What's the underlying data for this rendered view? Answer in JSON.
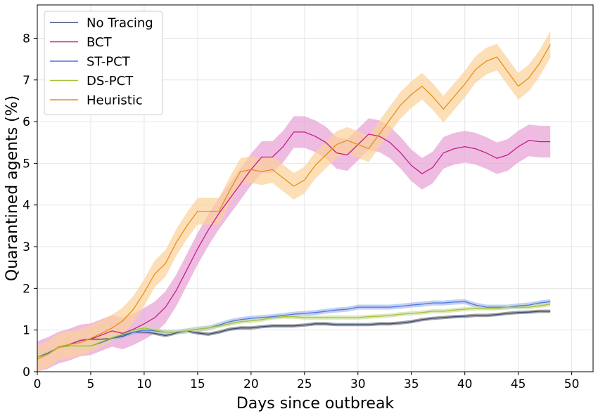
{
  "chart_data": {
    "type": "line",
    "xlabel": "Days since outbreak",
    "ylabel": "Quarantined agents (%)",
    "xlim": [
      0,
      52
    ],
    "ylim": [
      0,
      8.8
    ],
    "xticks": [
      0,
      5,
      10,
      15,
      20,
      25,
      30,
      35,
      40,
      45,
      50
    ],
    "yticks": [
      0,
      1,
      2,
      3,
      4,
      5,
      6,
      7,
      8
    ],
    "grid": true,
    "legend_position": "top-left",
    "series": [
      {
        "name": "No Tracing",
        "color": "#3b4f7a",
        "band_color": "#7a7a7a",
        "x": [
          0,
          1,
          2,
          3,
          4,
          5,
          6,
          7,
          8,
          9,
          10,
          11,
          12,
          13,
          14,
          15,
          16,
          17,
          18,
          19,
          20,
          21,
          22,
          23,
          24,
          25,
          26,
          27,
          28,
          29,
          30,
          31,
          32,
          33,
          34,
          35,
          36,
          37,
          38,
          39,
          40,
          41,
          42,
          43,
          44,
          45,
          46,
          47,
          48
        ],
        "y": [
          0.35,
          0.45,
          0.58,
          0.65,
          0.75,
          0.78,
          0.78,
          0.8,
          0.85,
          0.95,
          0.95,
          0.92,
          0.87,
          0.93,
          0.98,
          0.93,
          0.9,
          0.95,
          1.02,
          1.05,
          1.05,
          1.08,
          1.1,
          1.1,
          1.1,
          1.12,
          1.15,
          1.15,
          1.13,
          1.13,
          1.13,
          1.13,
          1.15,
          1.15,
          1.17,
          1.2,
          1.25,
          1.28,
          1.3,
          1.32,
          1.33,
          1.35,
          1.35,
          1.37,
          1.4,
          1.42,
          1.43,
          1.45,
          1.45
        ],
        "band": 0.04
      },
      {
        "name": "BCT",
        "color": "#c71c8c",
        "band_color": "#e8a0d4",
        "x": [
          0,
          1,
          2,
          3,
          4,
          5,
          6,
          7,
          8,
          9,
          10,
          11,
          12,
          13,
          14,
          15,
          16,
          17,
          18,
          19,
          20,
          21,
          22,
          23,
          24,
          25,
          26,
          27,
          28,
          29,
          30,
          31,
          32,
          33,
          34,
          35,
          36,
          37,
          38,
          39,
          40,
          41,
          42,
          43,
          44,
          45,
          46,
          47,
          48
        ],
        "y": [
          0.35,
          0.45,
          0.58,
          0.65,
          0.75,
          0.78,
          0.88,
          0.98,
          0.92,
          1.02,
          1.15,
          1.3,
          1.55,
          1.95,
          2.45,
          2.95,
          3.4,
          3.8,
          4.15,
          4.5,
          4.85,
          5.15,
          5.15,
          5.4,
          5.75,
          5.75,
          5.65,
          5.5,
          5.25,
          5.2,
          5.45,
          5.7,
          5.65,
          5.5,
          5.25,
          4.95,
          4.75,
          4.9,
          5.25,
          5.35,
          5.4,
          5.35,
          5.25,
          5.12,
          5.2,
          5.4,
          5.55,
          5.52,
          5.52
        ],
        "band": 0.38
      },
      {
        "name": "ST-PCT",
        "color": "#4a78e0",
        "band_color": "#a9bcee",
        "x": [
          0,
          1,
          2,
          3,
          4,
          5,
          6,
          7,
          8,
          9,
          10,
          11,
          12,
          13,
          14,
          15,
          16,
          17,
          18,
          19,
          20,
          21,
          22,
          23,
          24,
          25,
          26,
          27,
          28,
          29,
          30,
          31,
          32,
          33,
          34,
          35,
          36,
          37,
          38,
          39,
          40,
          41,
          42,
          43,
          44,
          45,
          46,
          47,
          48
        ],
        "y": [
          0.35,
          0.45,
          0.58,
          0.62,
          0.62,
          0.62,
          0.7,
          0.8,
          0.88,
          0.95,
          1.0,
          0.98,
          0.95,
          0.95,
          0.98,
          1.02,
          1.05,
          1.12,
          1.2,
          1.25,
          1.28,
          1.3,
          1.32,
          1.35,
          1.38,
          1.4,
          1.42,
          1.45,
          1.48,
          1.5,
          1.55,
          1.55,
          1.55,
          1.55,
          1.57,
          1.6,
          1.62,
          1.65,
          1.65,
          1.67,
          1.68,
          1.6,
          1.55,
          1.55,
          1.55,
          1.58,
          1.6,
          1.65,
          1.68
        ],
        "band": 0.06
      },
      {
        "name": "DS-PCT",
        "color": "#a8c23a",
        "band_color": "#cfe0a0",
        "x": [
          0,
          1,
          2,
          3,
          4,
          5,
          6,
          7,
          8,
          9,
          10,
          11,
          12,
          13,
          14,
          15,
          16,
          17,
          18,
          19,
          20,
          21,
          22,
          23,
          24,
          25,
          26,
          27,
          28,
          29,
          30,
          31,
          32,
          33,
          34,
          35,
          36,
          37,
          38,
          39,
          40,
          41,
          42,
          43,
          44,
          45,
          46,
          47,
          48
        ],
        "y": [
          0.35,
          0.42,
          0.58,
          0.62,
          0.62,
          0.62,
          0.72,
          0.82,
          0.9,
          1.0,
          1.05,
          1.0,
          0.95,
          0.95,
          0.98,
          1.02,
          1.05,
          1.1,
          1.15,
          1.2,
          1.22,
          1.25,
          1.3,
          1.32,
          1.32,
          1.3,
          1.3,
          1.3,
          1.3,
          1.3,
          1.3,
          1.32,
          1.33,
          1.35,
          1.38,
          1.4,
          1.42,
          1.45,
          1.45,
          1.48,
          1.5,
          1.52,
          1.52,
          1.52,
          1.55,
          1.55,
          1.55,
          1.58,
          1.62
        ],
        "band": 0.05
      },
      {
        "name": "Heuristic",
        "color": "#e5901a",
        "band_color": "#fcd199",
        "x": [
          0,
          1,
          2,
          3,
          4,
          5,
          6,
          7,
          8,
          9,
          10,
          11,
          12,
          13,
          14,
          15,
          16,
          17,
          18,
          19,
          20,
          21,
          22,
          23,
          24,
          25,
          26,
          27,
          28,
          29,
          30,
          31,
          32,
          33,
          34,
          35,
          36,
          37,
          38,
          39,
          40,
          41,
          42,
          43,
          44,
          45,
          46,
          47,
          48
        ],
        "y": [
          0.3,
          0.42,
          0.6,
          0.65,
          0.7,
          0.8,
          0.92,
          1.05,
          1.22,
          1.5,
          1.9,
          2.35,
          2.6,
          3.1,
          3.5,
          3.85,
          3.85,
          3.85,
          4.35,
          4.8,
          4.85,
          4.8,
          4.85,
          4.65,
          4.45,
          4.6,
          4.95,
          5.2,
          5.45,
          5.55,
          5.45,
          5.35,
          5.7,
          6.05,
          6.4,
          6.65,
          6.85,
          6.6,
          6.3,
          6.6,
          6.9,
          7.25,
          7.45,
          7.55,
          7.2,
          6.85,
          7.05,
          7.4,
          7.85
        ],
        "band": 0.32
      }
    ]
  }
}
